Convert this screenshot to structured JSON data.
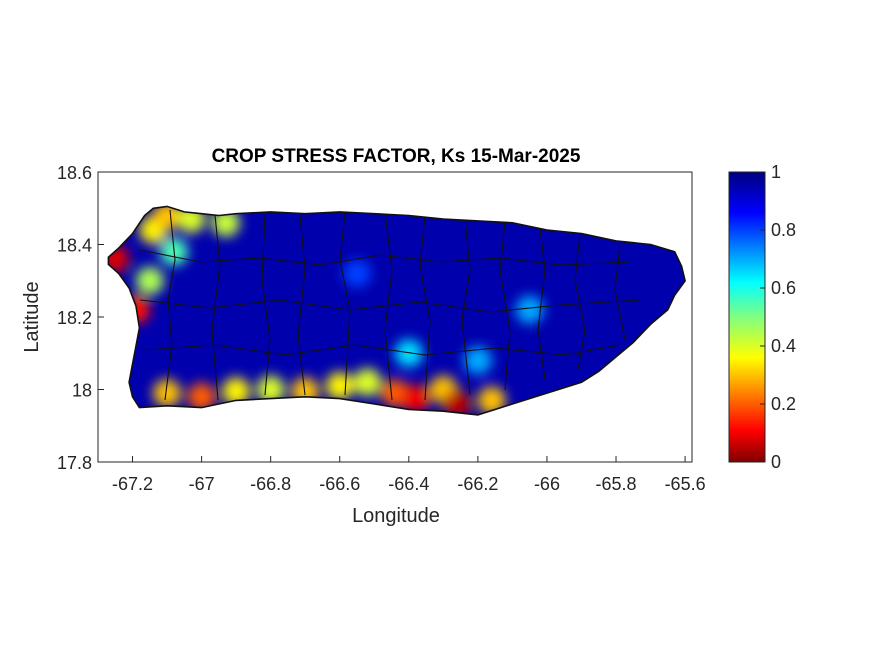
{
  "figure": {
    "title": "CROP STRESS FACTOR, Ks  15-Mar-2025",
    "xlabel": "Longitude",
    "ylabel": "Latitude"
  },
  "chart_data": {
    "type": "heatmap",
    "title": "CROP STRESS FACTOR, Ks  15-Mar-2025",
    "xlabel": "Longitude",
    "ylabel": "Latitude",
    "xlim": [
      -67.3,
      -65.58
    ],
    "ylim": [
      17.8,
      18.6
    ],
    "xticks": [
      -67.2,
      -67,
      -66.8,
      -66.6,
      -66.4,
      -66.2,
      -66,
      -65.8,
      -65.6
    ],
    "xtick_labels": [
      "-67.2",
      "-67",
      "-66.8",
      "-66.6",
      "-66.4",
      "-66.2",
      "-66",
      "-65.8",
      "-65.6"
    ],
    "yticks": [
      17.8,
      18,
      18.2,
      18.4,
      18.6
    ],
    "ytick_labels": [
      "17.8",
      "18",
      "18.2",
      "18.4",
      "18.6"
    ],
    "colorbar": {
      "colormap": "jet",
      "range": [
        0,
        1
      ],
      "ticks": [
        0,
        0.2,
        0.4,
        0.6,
        0.8,
        1
      ],
      "tick_labels": [
        "0",
        "0.2",
        "0.4",
        "0.6",
        "0.8",
        "1"
      ]
    },
    "grid": false,
    "background_value": 0.95,
    "island_outline": [
      [
        -67.27,
        18.365
      ],
      [
        -67.24,
        18.39
      ],
      [
        -67.2,
        18.43
      ],
      [
        -67.165,
        18.48
      ],
      [
        -67.14,
        18.5
      ],
      [
        -67.1,
        18.505
      ],
      [
        -67.05,
        18.49
      ],
      [
        -67.0,
        18.485
      ],
      [
        -66.95,
        18.48
      ],
      [
        -66.9,
        18.485
      ],
      [
        -66.8,
        18.49
      ],
      [
        -66.7,
        18.485
      ],
      [
        -66.6,
        18.49
      ],
      [
        -66.5,
        18.485
      ],
      [
        -66.4,
        18.48
      ],
      [
        -66.3,
        18.47
      ],
      [
        -66.2,
        18.465
      ],
      [
        -66.1,
        18.46
      ],
      [
        -66.05,
        18.45
      ],
      [
        -66.0,
        18.44
      ],
      [
        -65.9,
        18.43
      ],
      [
        -65.8,
        18.41
      ],
      [
        -65.7,
        18.4
      ],
      [
        -65.63,
        18.38
      ],
      [
        -65.61,
        18.34
      ],
      [
        -65.6,
        18.3
      ],
      [
        -65.63,
        18.26
      ],
      [
        -65.65,
        18.22
      ],
      [
        -65.7,
        18.18
      ],
      [
        -65.75,
        18.13
      ],
      [
        -65.8,
        18.09
      ],
      [
        -65.85,
        18.05
      ],
      [
        -65.9,
        18.02
      ],
      [
        -66.0,
        17.99
      ],
      [
        -66.1,
        17.96
      ],
      [
        -66.2,
        17.93
      ],
      [
        -66.3,
        17.94
      ],
      [
        -66.4,
        17.945
      ],
      [
        -66.5,
        17.96
      ],
      [
        -66.6,
        17.975
      ],
      [
        -66.7,
        17.98
      ],
      [
        -66.8,
        17.975
      ],
      [
        -66.9,
        17.97
      ],
      [
        -67.0,
        17.95
      ],
      [
        -67.1,
        17.955
      ],
      [
        -67.18,
        17.95
      ],
      [
        -67.2,
        17.98
      ],
      [
        -67.21,
        18.02
      ],
      [
        -67.2,
        18.07
      ],
      [
        -67.19,
        18.12
      ],
      [
        -67.18,
        18.17
      ],
      [
        -67.19,
        18.23
      ],
      [
        -67.21,
        18.28
      ],
      [
        -67.24,
        18.32
      ],
      [
        -67.27,
        18.345
      ]
    ],
    "stress_zones": [
      {
        "lon": -67.25,
        "lat": 18.36,
        "value": 0.08
      },
      {
        "lon": -67.19,
        "lat": 18.22,
        "value": 0.12
      },
      {
        "lon": -67.14,
        "lat": 18.44,
        "value": 0.35
      },
      {
        "lon": -67.1,
        "lat": 18.48,
        "value": 0.3
      },
      {
        "lon": -67.03,
        "lat": 18.47,
        "value": 0.4
      },
      {
        "lon": -66.93,
        "lat": 18.46,
        "value": 0.42
      },
      {
        "lon": -67.15,
        "lat": 18.3,
        "value": 0.45
      },
      {
        "lon": -67.08,
        "lat": 18.38,
        "value": 0.55
      },
      {
        "lon": -67.1,
        "lat": 17.99,
        "value": 0.3
      },
      {
        "lon": -67.0,
        "lat": 17.98,
        "value": 0.2
      },
      {
        "lon": -66.9,
        "lat": 17.995,
        "value": 0.35
      },
      {
        "lon": -66.8,
        "lat": 18.0,
        "value": 0.4
      },
      {
        "lon": -66.7,
        "lat": 17.995,
        "value": 0.3
      },
      {
        "lon": -66.6,
        "lat": 18.01,
        "value": 0.35
      },
      {
        "lon": -66.52,
        "lat": 18.02,
        "value": 0.4
      },
      {
        "lon": -66.44,
        "lat": 17.99,
        "value": 0.2
      },
      {
        "lon": -66.38,
        "lat": 17.975,
        "value": 0.1
      },
      {
        "lon": -66.3,
        "lat": 18.0,
        "value": 0.3
      },
      {
        "lon": -66.26,
        "lat": 17.96,
        "value": 0.05
      },
      {
        "lon": -66.16,
        "lat": 17.97,
        "value": 0.3
      },
      {
        "lon": -66.4,
        "lat": 18.1,
        "value": 0.65
      },
      {
        "lon": -66.2,
        "lat": 18.08,
        "value": 0.7
      },
      {
        "lon": -66.05,
        "lat": 18.22,
        "value": 0.7
      },
      {
        "lon": -66.55,
        "lat": 18.32,
        "value": 0.8
      }
    ]
  }
}
